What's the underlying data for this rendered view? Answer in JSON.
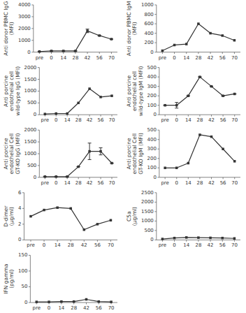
{
  "chart_data": [
    {
      "type": "line",
      "y_label": "Anti donor PBMC IgG\n(MFI)",
      "categories": [
        "pre",
        "0",
        "14",
        "28",
        "42",
        "56",
        "70"
      ],
      "values": [
        50,
        100,
        100,
        100,
        1800,
        1400,
        1100
      ],
      "errors": [
        0,
        0,
        0,
        0,
        150,
        0,
        0
      ],
      "ylim": [
        0,
        4000
      ],
      "yticks": [
        0,
        1000,
        2000,
        3000,
        4000
      ],
      "color": "#333333",
      "marker": "square",
      "grid": false
    },
    {
      "type": "line",
      "y_label": "Anti donor PBMC IgM\n(MFI)",
      "categories": [
        "pre",
        "0",
        "14",
        "28",
        "42",
        "56",
        "70"
      ],
      "values": [
        30,
        150,
        170,
        600,
        400,
        350,
        250
      ],
      "ylim": [
        0,
        1000
      ],
      "yticks": [
        0,
        200,
        400,
        600,
        800,
        1000
      ],
      "color": "#333333",
      "marker": "square",
      "grid": false
    },
    {
      "type": "line",
      "y_label": "Anti porcine endothelial cell\nwild-type IgG (MFI)",
      "categories": [
        "pre",
        "0",
        "14",
        "28",
        "42",
        "56",
        "70"
      ],
      "values": [
        30,
        50,
        50,
        500,
        1100,
        750,
        800
      ],
      "ylim": [
        0,
        2000
      ],
      "yticks": [
        0,
        500,
        1000,
        1500,
        2000
      ],
      "color": "#333333",
      "marker": "square",
      "grid": false
    },
    {
      "type": "line",
      "y_label": "Anti porcine endothelial cell\nwild-type IgM (MFI)",
      "categories": [
        "pre",
        "0",
        "14",
        "28",
        "42",
        "56",
        "70"
      ],
      "values": [
        100,
        100,
        200,
        400,
        300,
        200,
        220
      ],
      "errors": [
        0,
        30,
        0,
        0,
        0,
        0,
        0
      ],
      "ylim": [
        0,
        500
      ],
      "yticks": [
        0,
        100,
        200,
        300,
        400,
        500
      ],
      "color": "#333333",
      "marker": "square",
      "grid": false
    },
    {
      "type": "line",
      "y_label": "Anti porcine endothelial Cell\nGT-KO IgG (MFI)",
      "categories": [
        "pre",
        "0",
        "14",
        "28",
        "42",
        "56",
        "70"
      ],
      "values": [
        30,
        30,
        30,
        450,
        1100,
        1100,
        600
      ],
      "errors": [
        0,
        0,
        0,
        0,
        350,
        150,
        0
      ],
      "ylim": [
        0,
        2000
      ],
      "yticks": [
        0,
        500,
        1000,
        1500,
        2000
      ],
      "color": "#333333",
      "marker": "square",
      "grid": false
    },
    {
      "type": "line",
      "y_label": "Anti porcine endothelial Cell\nGT-KO IgM (MFI)",
      "categories": [
        "pre",
        "0",
        "14",
        "28",
        "42",
        "56",
        "70"
      ],
      "values": [
        100,
        100,
        150,
        450,
        430,
        300,
        170
      ],
      "ylim": [
        0,
        500
      ],
      "yticks": [
        0,
        100,
        200,
        300,
        400,
        500
      ],
      "color": "#333333",
      "marker": "square",
      "grid": false
    },
    {
      "type": "line",
      "y_label": "D-dimer\n(μg/ml)",
      "categories": [
        "pre",
        "0",
        "14",
        "28",
        "42",
        "56",
        "70"
      ],
      "values": [
        3.0,
        3.8,
        4.1,
        4.0,
        1.3,
        2.0,
        2.5
      ],
      "ylim": [
        0,
        6
      ],
      "yticks": [
        0,
        2,
        4,
        6
      ],
      "color": "#333333",
      "marker": "square",
      "grid": false
    },
    {
      "type": "line",
      "y_label": "C5a\n(μg/ml)",
      "categories": [
        "pre",
        "0",
        "14",
        "28",
        "42",
        "56",
        "70"
      ],
      "values": [
        50,
        100,
        130,
        120,
        110,
        100,
        80
      ],
      "ylim": [
        0,
        2500
      ],
      "yticks": [
        0,
        500,
        1000,
        1500,
        2000,
        2500
      ],
      "color": "#333333",
      "marker": "square",
      "grid": false
    },
    {
      "type": "line",
      "y_label": "IFN gamma\n(pg/ml)",
      "categories": [
        "pre",
        "0",
        "14",
        "28",
        "42",
        "56",
        "70"
      ],
      "values": [
        2,
        2,
        3,
        3,
        10,
        3,
        2
      ],
      "ylim": [
        0,
        150
      ],
      "yticks": [
        0,
        50,
        100,
        150
      ],
      "color": "#333333",
      "marker": "square",
      "grid": false
    }
  ]
}
